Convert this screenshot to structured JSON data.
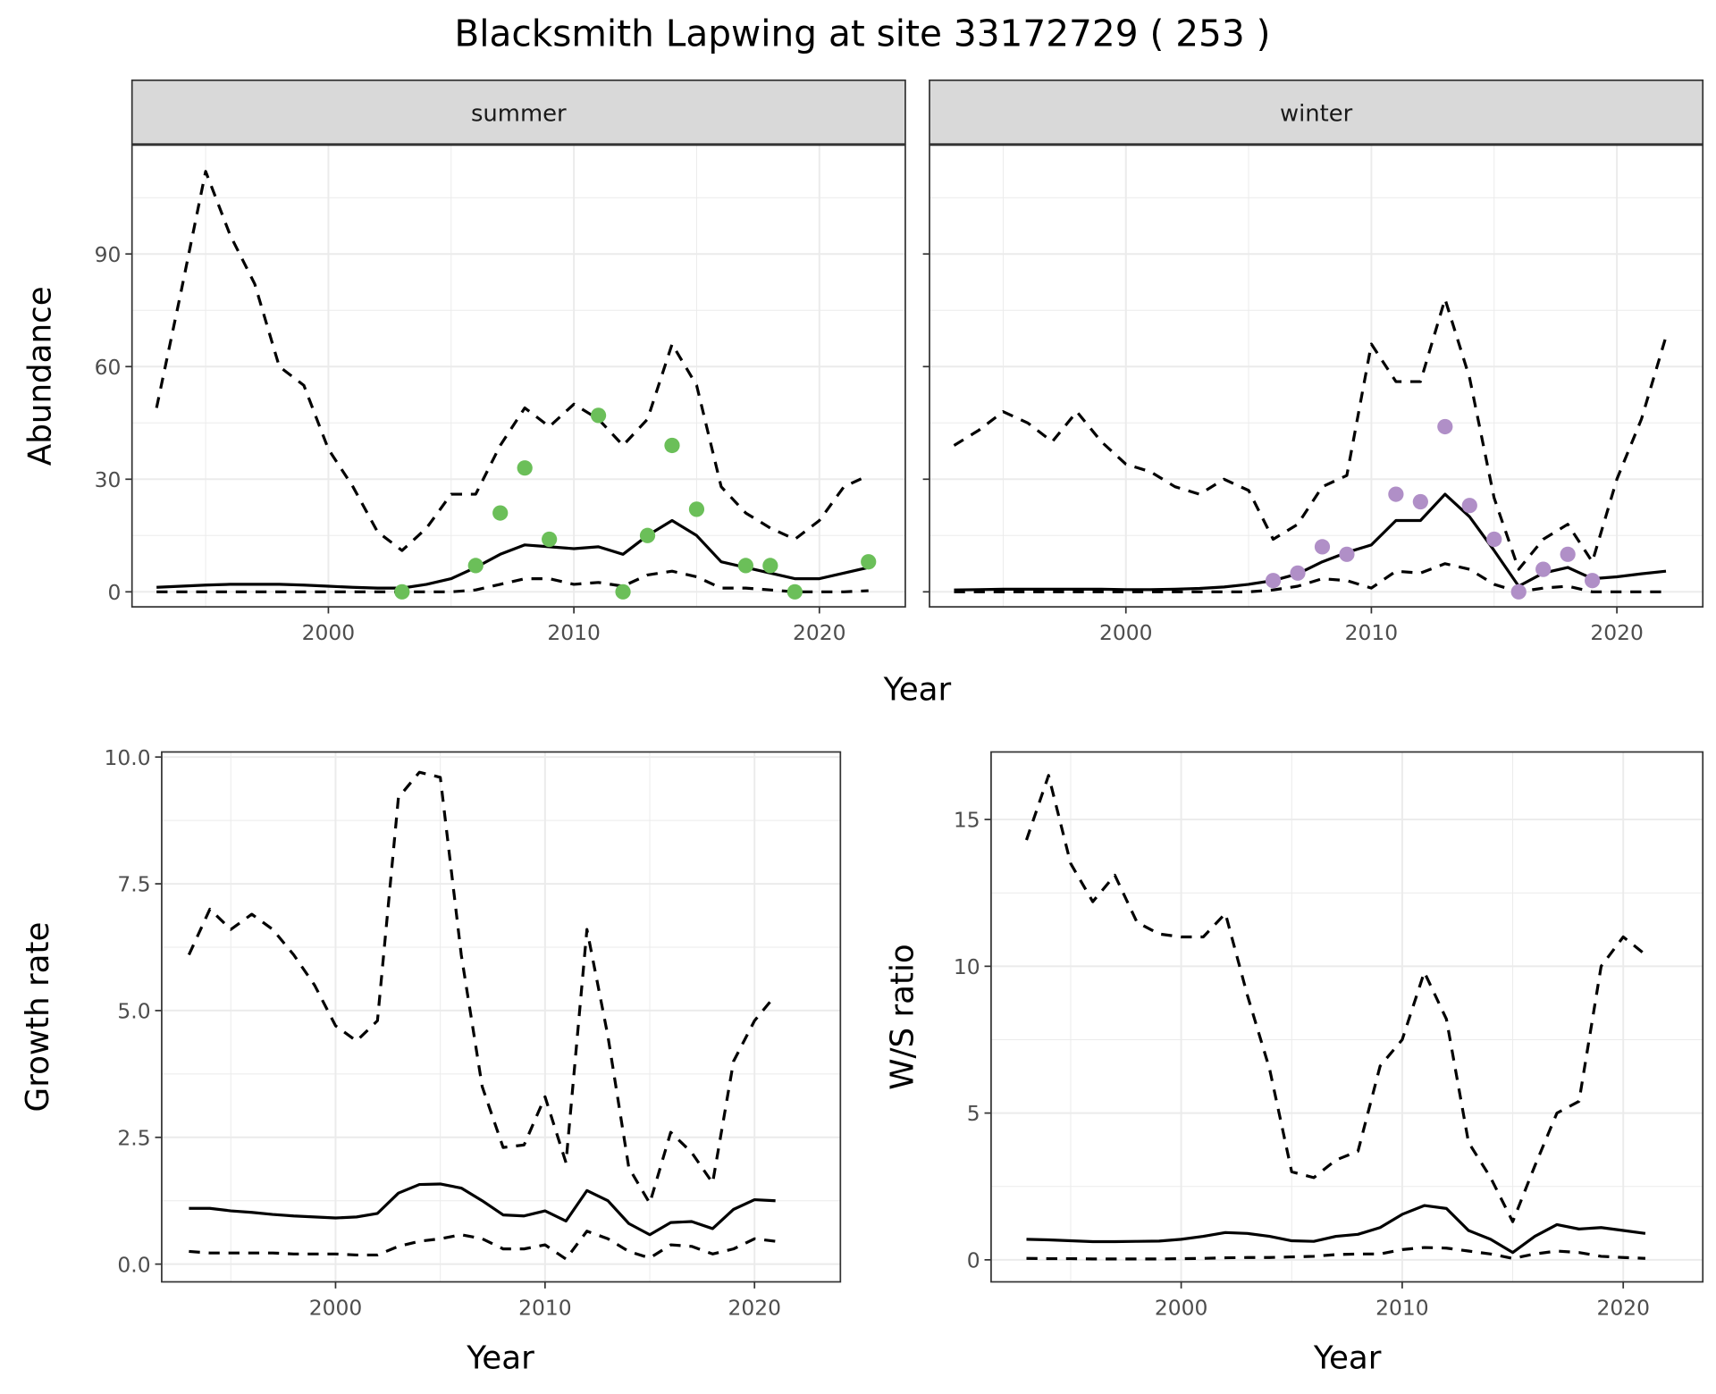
{
  "title": "Blacksmith Lapwing at site 33172729 ( 253 )",
  "chart_data": [
    {
      "type": "line",
      "panel": "summer",
      "strip_label": "summer",
      "xlabel": "Year",
      "ylabel": "Abundance",
      "xlim": [
        1992,
        2023.5
      ],
      "ylim": [
        -4,
        119
      ],
      "xticks": [
        2000,
        2010,
        2020
      ],
      "xtick_labels": [
        "2000",
        "2010",
        "2020"
      ],
      "yticks": [
        0,
        30,
        60,
        90
      ],
      "ytick_labels": [
        "0",
        "30",
        "60",
        "90"
      ],
      "x": [
        1993,
        1994,
        1995,
        1996,
        1997,
        1998,
        1999,
        2000,
        2001,
        2002,
        2003,
        2004,
        2005,
        2006,
        2007,
        2008,
        2009,
        2010,
        2011,
        2012,
        2013,
        2014,
        2015,
        2016,
        2017,
        2018,
        2019,
        2020,
        2021,
        2022
      ],
      "series": [
        {
          "name": "upper",
          "style": "dashed",
          "values": [
            49,
            80,
            112,
            95,
            82,
            60,
            55,
            38,
            28,
            16,
            11,
            17,
            26,
            26,
            39,
            49,
            44,
            50,
            46,
            39,
            46,
            66,
            55,
            28,
            21,
            17,
            14,
            19,
            28,
            31
          ]
        },
        {
          "name": "mean",
          "style": "solid",
          "values": [
            1.2,
            1.5,
            1.8,
            2,
            2,
            2,
            1.8,
            1.5,
            1.2,
            1,
            1,
            2,
            3.5,
            6.5,
            10,
            12.5,
            12,
            11.5,
            12,
            10,
            15,
            19,
            15,
            8,
            6.5,
            5,
            3.5,
            3.5,
            5,
            6.5
          ]
        },
        {
          "name": "lower",
          "style": "dashed",
          "values": [
            0,
            0,
            0,
            0,
            0,
            0,
            0,
            0,
            0,
            0,
            0,
            0,
            0,
            0.5,
            2,
            3.5,
            3.5,
            2,
            2.5,
            1.5,
            4.5,
            5.5,
            4,
            1,
            1,
            0.5,
            0,
            0,
            0,
            0.3
          ]
        }
      ],
      "points": {
        "color": "#6bbf59",
        "x": [
          2003,
          2006,
          2007,
          2008,
          2009,
          2011,
          2012,
          2013,
          2014,
          2015,
          2017,
          2018,
          2019,
          2022
        ],
        "y": [
          0,
          7,
          21,
          33,
          14,
          47,
          0,
          15,
          39,
          22,
          7,
          7,
          0,
          8
        ]
      }
    },
    {
      "type": "line",
      "panel": "winter",
      "strip_label": "winter",
      "xlabel": "Year",
      "ylabel": "Abundance",
      "xlim": [
        1992,
        2023.5
      ],
      "ylim": [
        -4,
        119
      ],
      "xticks": [
        2000,
        2010,
        2020
      ],
      "xtick_labels": [
        "2000",
        "2010",
        "2020"
      ],
      "yticks": [
        0,
        30,
        60,
        90
      ],
      "ytick_labels": [],
      "x": [
        1993,
        1994,
        1995,
        1996,
        1997,
        1998,
        1999,
        2000,
        2001,
        2002,
        2003,
        2004,
        2005,
        2006,
        2007,
        2008,
        2009,
        2010,
        2011,
        2012,
        2013,
        2014,
        2015,
        2016,
        2017,
        2018,
        2019,
        2020,
        2021,
        2022
      ],
      "series": [
        {
          "name": "upper",
          "style": "dashed",
          "values": [
            39,
            43,
            48,
            45,
            40,
            48,
            40,
            34,
            32,
            28,
            26,
            30,
            27,
            14,
            18,
            28,
            31,
            66,
            56,
            56,
            78,
            57,
            25,
            6,
            14,
            18,
            8,
            30,
            46,
            68
          ]
        },
        {
          "name": "mean",
          "style": "solid",
          "values": [
            0.5,
            0.6,
            0.7,
            0.7,
            0.7,
            0.7,
            0.7,
            0.6,
            0.6,
            0.7,
            0.9,
            1.3,
            2,
            3,
            4.8,
            8,
            10.5,
            12.5,
            19,
            19,
            26,
            20,
            11,
            1.5,
            5,
            6.5,
            3.5,
            4,
            4.8,
            5.5
          ]
        },
        {
          "name": "lower",
          "style": "dashed",
          "values": [
            0,
            0,
            0,
            0,
            0,
            0,
            0,
            0,
            0,
            0,
            0,
            0,
            0,
            0.5,
            1.5,
            3.5,
            3,
            1,
            5.5,
            5,
            7.5,
            6,
            2,
            0,
            1,
            1.5,
            0,
            0,
            0,
            0
          ]
        }
      ],
      "points": {
        "color": "#b08fc7",
        "x": [
          2006,
          2007,
          2008,
          2009,
          2011,
          2012,
          2013,
          2014,
          2015,
          2016,
          2017,
          2018,
          2019
        ],
        "y": [
          3,
          5,
          12,
          10,
          26,
          24,
          44,
          23,
          14,
          0,
          6,
          10,
          3
        ]
      }
    },
    {
      "type": "line",
      "panel": "growth",
      "xlabel": "Year",
      "ylabel": "Growth rate",
      "xlim": [
        1991.7,
        2024.1
      ],
      "ylim": [
        -0.35,
        10.1
      ],
      "xticks": [
        2000,
        2010,
        2020
      ],
      "xtick_labels": [
        "2000",
        "2010",
        "2020"
      ],
      "yticks": [
        0,
        2.5,
        5,
        7.5,
        10
      ],
      "ytick_labels": [
        "0.0",
        "2.5",
        "5.0",
        "7.5",
        "10.0"
      ],
      "x": [
        1993,
        1994,
        1995,
        1996,
        1997,
        1998,
        1999,
        2000,
        2001,
        2002,
        2003,
        2004,
        2005,
        2006,
        2007,
        2008,
        2009,
        2010,
        2011,
        2012,
        2013,
        2014,
        2015,
        2016,
        2017,
        2018,
        2019,
        2020,
        2021
      ],
      "series": [
        {
          "name": "upper",
          "style": "dashed",
          "values": [
            6.1,
            7.0,
            6.6,
            6.9,
            6.6,
            6.1,
            5.5,
            4.7,
            4.4,
            4.8,
            9.2,
            9.7,
            9.6,
            6.1,
            3.5,
            2.3,
            2.35,
            3.3,
            2.0,
            6.6,
            4.5,
            1.9,
            1.2,
            2.6,
            2.2,
            1.6,
            4.0,
            4.8,
            5.3
          ]
        },
        {
          "name": "mean",
          "style": "solid",
          "values": [
            1.1,
            1.1,
            1.05,
            1.02,
            0.98,
            0.95,
            0.93,
            0.91,
            0.93,
            1.0,
            1.4,
            1.57,
            1.58,
            1.5,
            1.25,
            0.97,
            0.95,
            1.05,
            0.85,
            1.45,
            1.25,
            0.8,
            0.58,
            0.82,
            0.84,
            0.7,
            1.08,
            1.27,
            1.25
          ]
        },
        {
          "name": "lower",
          "style": "dashed",
          "values": [
            0.25,
            0.22,
            0.22,
            0.22,
            0.22,
            0.2,
            0.2,
            0.2,
            0.18,
            0.18,
            0.35,
            0.45,
            0.5,
            0.58,
            0.5,
            0.3,
            0.3,
            0.38,
            0.1,
            0.65,
            0.5,
            0.25,
            0.12,
            0.38,
            0.35,
            0.2,
            0.3,
            0.5,
            0.45
          ]
        }
      ]
    },
    {
      "type": "line",
      "panel": "ratio",
      "xlabel": "Year",
      "ylabel": "W/S ratio",
      "xlim": [
        1991.4,
        2023.6
      ],
      "ylim": [
        -0.75,
        17.3
      ],
      "xticks": [
        2000,
        2010,
        2020
      ],
      "xtick_labels": [
        "2000",
        "2010",
        "2020"
      ],
      "yticks": [
        0,
        5,
        10,
        15
      ],
      "ytick_labels": [
        "0",
        "5",
        "10",
        "15"
      ],
      "x": [
        1993,
        1994,
        1995,
        1996,
        1997,
        1998,
        1999,
        2000,
        2001,
        2002,
        2003,
        2004,
        2005,
        2006,
        2007,
        2008,
        2009,
        2010,
        2011,
        2012,
        2013,
        2014,
        2015,
        2016,
        2017,
        2018,
        2019,
        2020,
        2021
      ],
      "series": [
        {
          "name": "upper",
          "style": "dashed",
          "values": [
            14.3,
            16.5,
            13.5,
            12.2,
            13.1,
            11.5,
            11.1,
            11.0,
            11.0,
            11.8,
            9.0,
            6.5,
            3.0,
            2.8,
            3.4,
            3.7,
            6.6,
            7.5,
            9.8,
            8.2,
            4.0,
            2.8,
            1.3,
            3.2,
            5.0,
            5.4,
            10.0,
            11.0,
            10.4
          ]
        },
        {
          "name": "mean",
          "style": "solid",
          "values": [
            0.7,
            0.68,
            0.65,
            0.62,
            0.62,
            0.63,
            0.64,
            0.7,
            0.8,
            0.93,
            0.9,
            0.8,
            0.65,
            0.63,
            0.8,
            0.87,
            1.1,
            1.55,
            1.85,
            1.75,
            1.0,
            0.7,
            0.25,
            0.8,
            1.2,
            1.05,
            1.1,
            1.0,
            0.9
          ]
        },
        {
          "name": "lower",
          "style": "dashed",
          "values": [
            0.05,
            0.04,
            0.04,
            0.03,
            0.03,
            0.03,
            0.03,
            0.04,
            0.05,
            0.07,
            0.08,
            0.08,
            0.1,
            0.12,
            0.18,
            0.2,
            0.2,
            0.35,
            0.42,
            0.4,
            0.3,
            0.2,
            0.05,
            0.2,
            0.3,
            0.25,
            0.12,
            0.08,
            0.05
          ]
        }
      ]
    }
  ]
}
